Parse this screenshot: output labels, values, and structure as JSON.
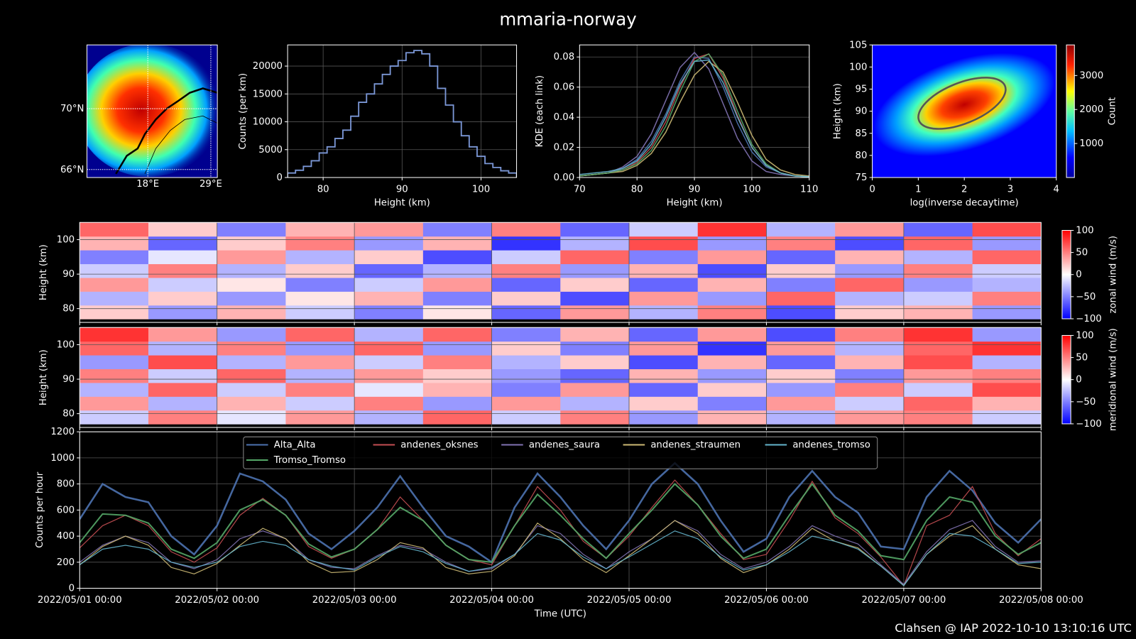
{
  "title": "mmaria-norway",
  "footer": "Clahsen @ IAP 2022-10-10 13:10:16 UTC",
  "chart_data": [
    {
      "type": "map",
      "lat_labels": [
        "70°N",
        "66°N"
      ],
      "lon_labels": [
        "18°E",
        "29°E"
      ]
    },
    {
      "type": "histogram",
      "xlabel": "Height (km)",
      "ylabel": "Counts (per km)",
      "color": "#7b97d6",
      "grid": true,
      "bins": [
        75.5,
        76.5,
        77.5,
        78.5,
        79.5,
        80.5,
        81.5,
        82.5,
        83.5,
        84.5,
        85.5,
        86.5,
        87.5,
        88.5,
        89.5,
        90.5,
        91.5,
        92.5,
        93.5,
        94.5,
        95.5,
        96.5,
        97.5,
        98.5,
        99.5,
        100.5,
        101.5,
        102.5,
        103.5,
        104.5
      ],
      "values": [
        800,
        1300,
        2000,
        3000,
        4400,
        5500,
        7000,
        8500,
        11000,
        13500,
        15000,
        16800,
        18500,
        20000,
        21000,
        22400,
        22800,
        22200,
        20000,
        16000,
        13000,
        10000,
        7500,
        5500,
        3800,
        2500,
        1800,
        1200,
        800
      ],
      "xlim": [
        75.5,
        104.5
      ],
      "ylim": [
        0,
        23800
      ],
      "xticks": [
        80,
        90,
        100
      ],
      "yticks": [
        0,
        5000,
        10000,
        15000,
        20000
      ]
    },
    {
      "type": "line",
      "xlabel": "Height (km)",
      "ylabel": "KDE (each link)",
      "grid": true,
      "x": [
        70,
        72.5,
        75,
        77.5,
        80,
        82.5,
        85,
        87.5,
        90,
        92.5,
        95,
        97.5,
        100,
        102.5,
        105,
        107.5,
        110
      ],
      "series": [
        {
          "color": "#4c72b0",
          "values": [
            0.001,
            0.002,
            0.003,
            0.006,
            0.012,
            0.024,
            0.042,
            0.064,
            0.08,
            0.079,
            0.06,
            0.036,
            0.017,
            0.007,
            0.003,
            0.001,
            0.0005
          ]
        },
        {
          "color": "#c44e52",
          "values": [
            0.001,
            0.002,
            0.003,
            0.005,
            0.01,
            0.02,
            0.037,
            0.06,
            0.079,
            0.082,
            0.066,
            0.041,
            0.02,
            0.008,
            0.003,
            0.001,
            0.0005
          ]
        },
        {
          "color": "#8172b2",
          "values": [
            0.001,
            0.002,
            0.003,
            0.007,
            0.014,
            0.029,
            0.051,
            0.073,
            0.083,
            0.072,
            0.049,
            0.026,
            0.011,
            0.004,
            0.002,
            0.001,
            0.0005
          ]
        },
        {
          "color": "#ccb974",
          "values": [
            0.001,
            0.002,
            0.003,
            0.004,
            0.008,
            0.016,
            0.03,
            0.05,
            0.068,
            0.077,
            0.07,
            0.05,
            0.028,
            0.012,
            0.005,
            0.002,
            0.001
          ]
        },
        {
          "color": "#55a868",
          "values": [
            0.001,
            0.002,
            0.003,
            0.005,
            0.009,
            0.018,
            0.034,
            0.057,
            0.077,
            0.082,
            0.068,
            0.044,
            0.022,
            0.009,
            0.003,
            0.001,
            0.0005
          ]
        },
        {
          "color": "#64b5cd",
          "values": [
            0.002,
            0.003,
            0.004,
            0.006,
            0.011,
            0.022,
            0.04,
            0.062,
            0.077,
            0.078,
            0.063,
            0.04,
            0.02,
            0.008,
            0.003,
            0.001,
            0.0005
          ]
        }
      ],
      "xlim": [
        70,
        110
      ],
      "ylim": [
        0,
        0.088
      ],
      "xticks": [
        70,
        80,
        90,
        100,
        110
      ],
      "yticks": [
        {
          "value": 0,
          "label": "0.00"
        },
        {
          "value": 0.02,
          "label": "0.02"
        },
        {
          "value": 0.04,
          "label": "0.04"
        },
        {
          "value": 0.06,
          "label": "0.06"
        },
        {
          "value": 0.08,
          "label": "0.08"
        }
      ]
    },
    {
      "type": "density",
      "xlabel": "log(inverse decaytime)",
      "ylabel": "Height (km)",
      "xlim": [
        0,
        4
      ],
      "ylim": [
        75,
        105
      ],
      "xticks": [
        0,
        1,
        2,
        3,
        4
      ],
      "yticks": [
        75,
        80,
        85,
        90,
        95,
        100,
        105
      ],
      "colorbar": {
        "label": "Count",
        "lim": [
          0,
          3900
        ],
        "ticks": [
          1000,
          2000,
          3000
        ]
      }
    },
    {
      "type": "heatmap",
      "ylabel": "Height (km)",
      "xlim": [
        0,
        168
      ],
      "ylim": [
        76,
        105
      ],
      "xticks": [
        0,
        24,
        48,
        72,
        96,
        120,
        144,
        168
      ],
      "yticks": [
        80,
        90,
        100
      ],
      "x": [
        6,
        18,
        30,
        42,
        54,
        66,
        78,
        90,
        102,
        114,
        126,
        138,
        150,
        162
      ],
      "y": [
        79,
        83,
        87,
        91,
        95,
        99,
        103
      ],
      "z": [
        [
          20,
          -40,
          30,
          -20,
          -50,
          10,
          -60,
          40,
          -30,
          50,
          -70,
          20,
          30,
          -40
        ],
        [
          -30,
          20,
          -40,
          10,
          30,
          -50,
          20,
          -70,
          40,
          -40,
          60,
          -30,
          -20,
          50
        ],
        [
          40,
          -20,
          10,
          -50,
          -20,
          40,
          -60,
          20,
          -60,
          30,
          -50,
          60,
          -40,
          -30
        ],
        [
          -20,
          50,
          -30,
          20,
          -60,
          -30,
          50,
          -40,
          30,
          -70,
          20,
          -40,
          50,
          -20
        ],
        [
          -50,
          -10,
          40,
          -30,
          20,
          -70,
          -20,
          60,
          -50,
          40,
          -60,
          30,
          -30,
          60
        ],
        [
          30,
          -60,
          20,
          50,
          -40,
          30,
          -80,
          -30,
          70,
          -40,
          50,
          -70,
          60,
          -40
        ],
        [
          60,
          20,
          -50,
          30,
          40,
          -50,
          50,
          -60,
          -20,
          80,
          -30,
          40,
          -60,
          70
        ]
      ],
      "colorbar": {
        "label": "zonal wind (m/s)",
        "lim": [
          -100,
          100
        ],
        "ticks": [
          {
            "value": -100,
            "label": "−100"
          },
          {
            "value": -50,
            "label": "−50"
          },
          0,
          50,
          100
        ]
      }
    },
    {
      "type": "heatmap",
      "ylabel": "Height (km)",
      "xlim": [
        0,
        168
      ],
      "ylim": [
        76,
        105
      ],
      "xticks": [
        0,
        24,
        48,
        72,
        96,
        120,
        144,
        168
      ],
      "yticks": [
        80,
        90,
        100
      ],
      "x": [
        6,
        18,
        30,
        42,
        54,
        66,
        78,
        90,
        102,
        114,
        126,
        138,
        150,
        162
      ],
      "y": [
        79,
        83,
        87,
        91,
        95,
        99,
        103
      ],
      "z": [
        [
          -20,
          50,
          -10,
          40,
          -30,
          60,
          -20,
          50,
          -40,
          30,
          -30,
          40,
          50,
          -20
        ],
        [
          40,
          -30,
          30,
          -20,
          50,
          -40,
          40,
          -30,
          20,
          -50,
          40,
          -20,
          60,
          30
        ],
        [
          -30,
          60,
          -20,
          50,
          -10,
          30,
          -50,
          40,
          -60,
          20,
          -40,
          50,
          -20,
          70
        ],
        [
          50,
          -20,
          60,
          -30,
          40,
          20,
          -40,
          -60,
          30,
          -40,
          20,
          -50,
          40,
          50
        ],
        [
          -40,
          70,
          -30,
          40,
          -20,
          50,
          -30,
          20,
          -70,
          30,
          -60,
          30,
          70,
          -30
        ],
        [
          60,
          -30,
          50,
          -40,
          60,
          -40,
          20,
          -50,
          40,
          -80,
          40,
          -30,
          60,
          80
        ],
        [
          80,
          40,
          -40,
          60,
          -30,
          60,
          -50,
          30,
          -60,
          40,
          -70,
          50,
          80,
          -40
        ]
      ],
      "colorbar": {
        "label": "meridional wind (m/s)",
        "lim": [
          -100,
          100
        ],
        "ticks": [
          {
            "value": -100,
            "label": "−100"
          },
          {
            "value": -50,
            "label": "−50"
          },
          0,
          50,
          100
        ]
      }
    },
    {
      "type": "line",
      "xlabel": "Time (UTC)",
      "ylabel": "Counts per hour",
      "grid": true,
      "legend": "upper center",
      "x": [
        0,
        4,
        8,
        12,
        16,
        20,
        24,
        28,
        32,
        36,
        40,
        44,
        48,
        52,
        56,
        60,
        64,
        68,
        72,
        76,
        80,
        84,
        88,
        92,
        96,
        100,
        104,
        108,
        112,
        116,
        120,
        124,
        128,
        132,
        136,
        140,
        144,
        148,
        152,
        156,
        160,
        164,
        168
      ],
      "series": [
        {
          "name": "Alta_Alta",
          "color": "#4c72b0",
          "values": [
            530,
            800,
            700,
            660,
            400,
            260,
            480,
            880,
            820,
            680,
            420,
            300,
            440,
            620,
            860,
            620,
            400,
            320,
            200,
            620,
            880,
            700,
            480,
            300,
            520,
            800,
            960,
            800,
            520,
            280,
            380,
            700,
            900,
            700,
            580,
            320,
            300,
            700,
            900,
            750,
            500,
            350,
            530
          ]
        },
        {
          "name": "andenes_oksnes",
          "color": "#c44e52",
          "values": [
            310,
            480,
            560,
            480,
            280,
            200,
            310,
            560,
            690,
            560,
            320,
            230,
            300,
            450,
            700,
            520,
            330,
            220,
            180,
            480,
            780,
            600,
            360,
            230,
            400,
            620,
            830,
            640,
            420,
            220,
            260,
            520,
            820,
            540,
            420,
            240,
            20,
            480,
            560,
            780,
            420,
            250,
            380
          ]
        },
        {
          "name": "andenes_saura",
          "color": "#8172b2",
          "values": [
            200,
            330,
            400,
            350,
            200,
            150,
            220,
            380,
            440,
            380,
            220,
            160,
            150,
            250,
            330,
            300,
            200,
            130,
            150,
            260,
            480,
            420,
            260,
            150,
            280,
            380,
            520,
            440,
            260,
            150,
            200,
            320,
            480,
            400,
            340,
            180,
            30,
            280,
            450,
            520,
            320,
            200,
            210
          ]
        },
        {
          "name": "andenes_straumen",
          "color": "#ccb974",
          "values": [
            180,
            320,
            400,
            330,
            160,
            110,
            190,
            330,
            460,
            380,
            200,
            120,
            130,
            220,
            350,
            310,
            160,
            110,
            130,
            250,
            500,
            380,
            220,
            120,
            250,
            380,
            520,
            420,
            230,
            120,
            180,
            300,
            460,
            360,
            310,
            170,
            20,
            260,
            400,
            480,
            300,
            180,
            150
          ]
        },
        {
          "name": "andenes_tromso",
          "color": "#64b5cd",
          "values": [
            180,
            300,
            330,
            300,
            200,
            160,
            200,
            320,
            360,
            330,
            220,
            170,
            140,
            240,
            320,
            280,
            190,
            130,
            160,
            260,
            420,
            370,
            240,
            150,
            240,
            340,
            440,
            380,
            240,
            140,
            180,
            280,
            400,
            360,
            300,
            170,
            20,
            260,
            420,
            400,
            300,
            190,
            200
          ]
        },
        {
          "name": "Tromso_Tromso",
          "color": "#55a868",
          "values": [
            350,
            570,
            560,
            500,
            300,
            230,
            350,
            600,
            680,
            560,
            340,
            240,
            300,
            450,
            620,
            520,
            330,
            220,
            200,
            480,
            720,
            560,
            380,
            230,
            420,
            600,
            800,
            640,
            400,
            230,
            300,
            560,
            800,
            560,
            440,
            250,
            220,
            520,
            700,
            660,
            400,
            260,
            350
          ]
        }
      ],
      "xlim": [
        0,
        168
      ],
      "ylim": [
        0,
        1200
      ],
      "yticks": [
        0,
        200,
        400,
        600,
        800,
        1000,
        1200
      ],
      "xticks": [
        {
          "value": 0,
          "label": "2022/05/01 00:00"
        },
        {
          "value": 24,
          "label": "2022/05/02 00:00"
        },
        {
          "value": 48,
          "label": "2022/05/03 00:00"
        },
        {
          "value": 72,
          "label": "2022/05/04 00:00"
        },
        {
          "value": 96,
          "label": "2022/05/05 00:00"
        },
        {
          "value": 120,
          "label": "2022/05/06 00:00"
        },
        {
          "value": 144,
          "label": "2022/05/07 00:00"
        },
        {
          "value": 168,
          "label": "2022/05/08 00:00"
        }
      ]
    }
  ]
}
